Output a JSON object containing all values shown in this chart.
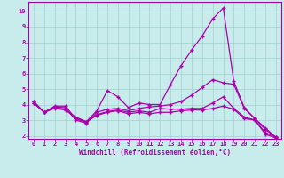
{
  "title": "",
  "xlabel": "Windchill (Refroidissement éolien,°C)",
  "ylabel": "",
  "bg_color": "#c8ecec",
  "grid_color": "#a0d0d0",
  "line_color": "#aa00aa",
  "marker": "+",
  "xlim": [
    -0.5,
    23.5
  ],
  "ylim": [
    1.8,
    10.6
  ],
  "xticks": [
    0,
    1,
    2,
    3,
    4,
    5,
    6,
    7,
    8,
    9,
    10,
    11,
    12,
    13,
    14,
    15,
    16,
    17,
    18,
    19,
    20,
    21,
    22,
    23
  ],
  "yticks": [
    2,
    3,
    4,
    5,
    6,
    7,
    8,
    9,
    10
  ],
  "series1_x": [
    0,
    1,
    2,
    3,
    4,
    5,
    6,
    7,
    8,
    9,
    10,
    11,
    12,
    13,
    14,
    15,
    16,
    17,
    18,
    19,
    20,
    21,
    22,
    23
  ],
  "series1_y": [
    4.2,
    3.5,
    3.9,
    3.9,
    3.1,
    2.9,
    3.6,
    4.9,
    4.5,
    3.8,
    4.1,
    4.0,
    4.0,
    5.3,
    6.5,
    7.5,
    8.4,
    9.5,
    10.2,
    5.5,
    3.8,
    3.1,
    2.5,
    1.9
  ],
  "series2_x": [
    0,
    1,
    2,
    3,
    4,
    5,
    6,
    7,
    8,
    9,
    10,
    11,
    12,
    13,
    14,
    15,
    16,
    17,
    18,
    19,
    20,
    21,
    22,
    23
  ],
  "series2_y": [
    4.2,
    3.5,
    3.85,
    3.8,
    3.0,
    2.8,
    3.5,
    3.7,
    3.75,
    3.6,
    3.75,
    3.85,
    3.9,
    4.0,
    4.2,
    4.6,
    5.1,
    5.6,
    5.4,
    5.3,
    3.75,
    3.1,
    2.4,
    1.9
  ],
  "series3_x": [
    0,
    1,
    2,
    3,
    4,
    5,
    6,
    7,
    8,
    9,
    10,
    11,
    12,
    13,
    14,
    15,
    16,
    17,
    18,
    19,
    20,
    21,
    22,
    23
  ],
  "series3_y": [
    4.1,
    3.5,
    3.8,
    3.7,
    3.1,
    2.85,
    3.35,
    3.55,
    3.65,
    3.5,
    3.6,
    3.5,
    3.75,
    3.7,
    3.7,
    3.75,
    3.75,
    4.1,
    4.5,
    3.75,
    3.2,
    3.0,
    2.2,
    1.9
  ],
  "series4_x": [
    0,
    1,
    2,
    3,
    4,
    5,
    6,
    7,
    8,
    9,
    10,
    11,
    12,
    13,
    14,
    15,
    16,
    17,
    18,
    19,
    20,
    21,
    22,
    23
  ],
  "series4_y": [
    4.1,
    3.5,
    3.75,
    3.65,
    3.2,
    2.9,
    3.3,
    3.5,
    3.6,
    3.4,
    3.5,
    3.4,
    3.5,
    3.5,
    3.6,
    3.65,
    3.65,
    3.75,
    3.9,
    3.7,
    3.1,
    3.0,
    2.1,
    1.85
  ]
}
